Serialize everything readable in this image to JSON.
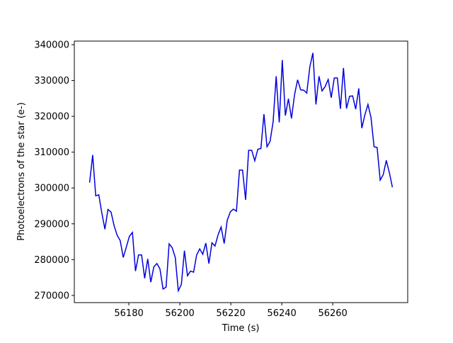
{
  "chart_data": {
    "type": "line",
    "xlabel": "Time (s)",
    "ylabel": "Photoelectrons of the star (e-)",
    "x": [
      56164.6,
      56165.8,
      56167.0,
      56168.2,
      56169.4,
      56170.6,
      56171.8,
      56173.0,
      56174.2,
      56175.4,
      56176.6,
      56177.8,
      56179.0,
      56180.2,
      56181.4,
      56182.6,
      56183.8,
      56185.0,
      56186.2,
      56187.4,
      56188.6,
      56189.8,
      56191.0,
      56192.2,
      56193.4,
      56194.6,
      56195.8,
      56197.0,
      56198.2,
      56199.4,
      56200.6,
      56201.8,
      56203.0,
      56204.2,
      56205.4,
      56206.6,
      56207.8,
      56209.0,
      56210.2,
      56211.4,
      56212.6,
      56213.8,
      56215.0,
      56216.2,
      56217.4,
      56218.6,
      56219.8,
      56221.0,
      56222.2,
      56223.4,
      56224.6,
      56225.8,
      56227.0,
      56228.2,
      56229.4,
      56230.6,
      56231.8,
      56233.0,
      56234.2,
      56235.4,
      56236.6,
      56237.8,
      56239.0,
      56240.2,
      56241.4,
      56242.6,
      56243.8,
      56245.0,
      56246.2,
      56247.4,
      56248.6,
      56249.8,
      56251.0,
      56252.2,
      56253.4,
      56254.6,
      56255.8,
      56257.0,
      56258.2,
      56259.4,
      56260.6,
      56261.8,
      56263.0,
      56264.2,
      56265.4,
      56266.6,
      56267.8,
      56269.0,
      56270.2,
      56271.4,
      56272.6,
      56273.8,
      56275.0,
      56276.2,
      56277.4,
      56278.6,
      56279.8,
      56281.0,
      56282.2,
      56283.4
    ],
    "series": [
      {
        "color": "#0000dd",
        "values": [
          301500,
          309200,
          297800,
          298100,
          293000,
          288500,
          294000,
          293300,
          289500,
          286800,
          285300,
          280600,
          283500,
          286500,
          287600,
          276800,
          281300,
          281300,
          274800,
          280200,
          273700,
          278000,
          278900,
          277400,
          271800,
          272300,
          284400,
          283300,
          280600,
          271300,
          273100,
          282500,
          275500,
          276800,
          276500,
          281300,
          283000,
          281500,
          284600,
          278900,
          284700,
          283800,
          286900,
          289100,
          284500,
          291000,
          293300,
          294100,
          293500,
          305000,
          305000,
          296700,
          310500,
          310500,
          307600,
          310800,
          311000,
          320600,
          311500,
          313000,
          318500,
          331200,
          318300,
          335700,
          320200,
          324900,
          319400,
          326000,
          330200,
          327400,
          327300,
          326500,
          333800,
          337700,
          323300,
          331200,
          327100,
          328300,
          330300,
          325200,
          330700,
          330700,
          322100,
          333500,
          322200,
          325600,
          325700,
          322000,
          327800,
          316700,
          320400,
          323300,
          319700,
          311500,
          311300,
          302200,
          303700,
          307700,
          304300,
          300200
        ]
      }
    ],
    "xlim": [
      56158.6,
      56289.4
    ],
    "xticks": [
      56180,
      56200,
      56220,
      56240,
      56260
    ],
    "ylim": [
      268000,
      341000
    ],
    "yticks": [
      270000,
      280000,
      290000,
      300000,
      310000,
      320000,
      330000,
      340000
    ]
  }
}
